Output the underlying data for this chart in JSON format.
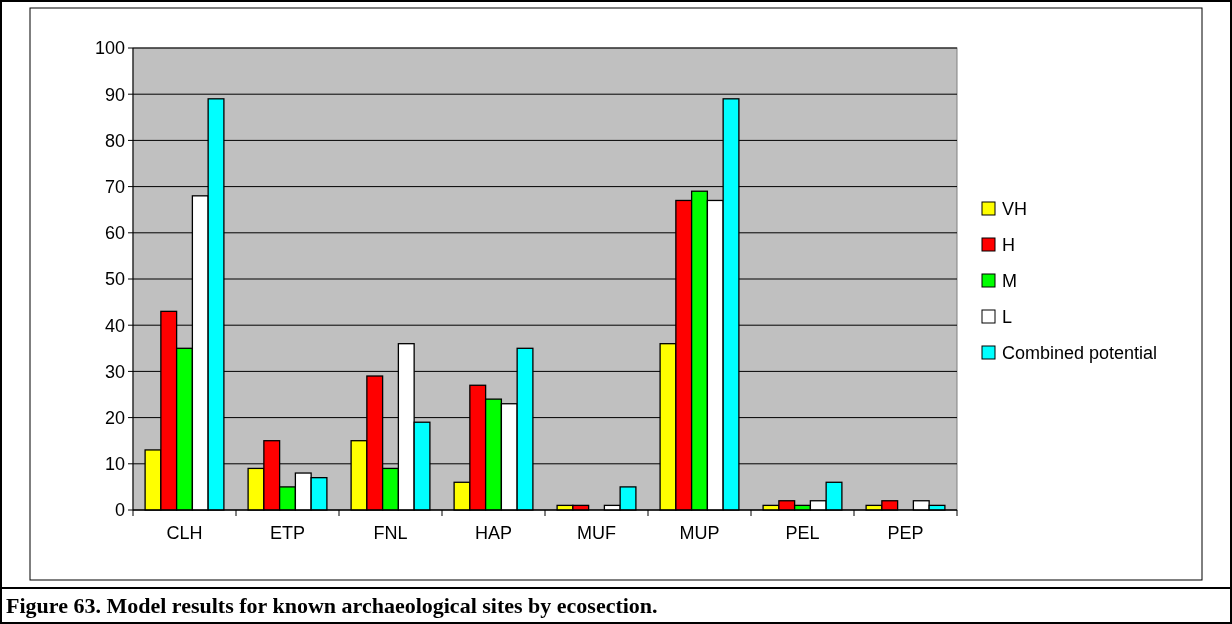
{
  "chart_data": {
    "type": "bar",
    "title": "Figure 63. Model results for known archaeological sites by ecosection.",
    "categories": [
      "CLH",
      "ETP",
      "FNL",
      "HAP",
      "MUF",
      "MUP",
      "PEL",
      "PEP"
    ],
    "series": [
      {
        "name": "VH",
        "color": "#ffff00",
        "values": [
          13,
          9,
          15,
          6,
          1,
          36,
          1,
          1
        ]
      },
      {
        "name": "H",
        "color": "#ff0000",
        "values": [
          43,
          15,
          29,
          27,
          1,
          67,
          2,
          2
        ]
      },
      {
        "name": "M",
        "color": "#00ff00",
        "values": [
          35,
          5,
          9,
          24,
          0,
          69,
          1,
          0
        ]
      },
      {
        "name": "L",
        "color": "#ffffff",
        "values": [
          68,
          8,
          36,
          23,
          1,
          67,
          2,
          2
        ]
      },
      {
        "name": "Combined potential",
        "color": "#00ffff",
        "values": [
          89,
          7,
          19,
          35,
          5,
          89,
          6,
          1
        ]
      }
    ],
    "ylim": [
      0,
      100
    ],
    "yticks": [
      0,
      10,
      20,
      30,
      40,
      50,
      60,
      70,
      80,
      90,
      100
    ],
    "grid": "y",
    "legend": "right"
  }
}
